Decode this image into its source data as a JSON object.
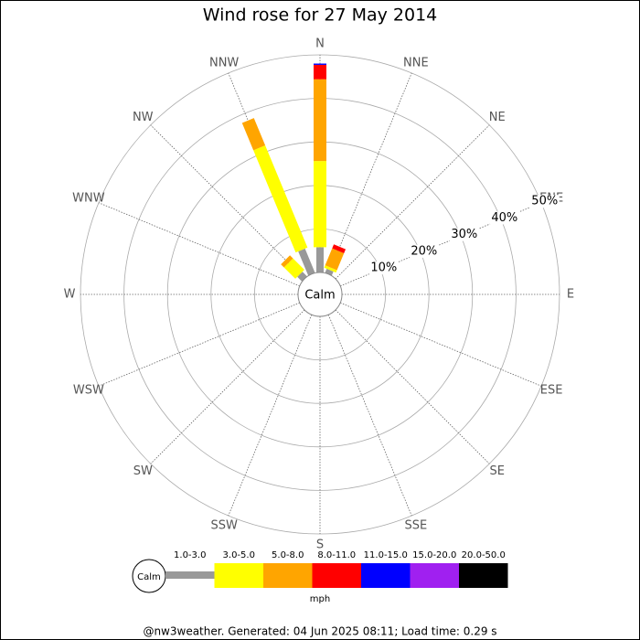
{
  "chart_data": {
    "type": "windrose",
    "title": "Wind rose for 27 May 2014",
    "calm_label": "Calm",
    "unit": "mph",
    "footer": "@nw3weather. Generated: 04 Jun 2025 08:11; Load time: 0.29 s",
    "categories": [
      "N",
      "NNE",
      "NE",
      "ENE",
      "E",
      "ESE",
      "SE",
      "SSE",
      "S",
      "SSW",
      "SW",
      "WSW",
      "W",
      "WNW",
      "NW",
      "NNW"
    ],
    "rlim": [
      0,
      50
    ],
    "rticks": [
      {
        "value": 10,
        "label": "10%"
      },
      {
        "value": 20,
        "label": "20%"
      },
      {
        "value": 30,
        "label": "30%"
      },
      {
        "value": 40,
        "label": "40%"
      },
      {
        "value": 50,
        "label": "50%"
      }
    ],
    "series": [
      {
        "name": "1.0-3.0",
        "color": "#999999",
        "values": [
          5.8,
          1.0,
          0,
          0,
          0,
          0,
          0,
          0,
          0,
          0,
          0,
          0,
          0,
          0,
          1.5,
          6.0
        ]
      },
      {
        "name": "3.0-5.0",
        "color": "#ffff00",
        "values": [
          19.8,
          0.6,
          0,
          0,
          0,
          0,
          0,
          0,
          0,
          0,
          0,
          0,
          0,
          0,
          3.7,
          25.4
        ]
      },
      {
        "name": "5.0-8.0",
        "color": "#ffa500",
        "values": [
          18.8,
          4.2,
          0,
          0,
          0,
          0,
          0,
          0,
          0,
          0,
          0,
          0,
          0,
          0,
          1.0,
          6.8
        ]
      },
      {
        "name": "8.0-11.0",
        "color": "#ff0000",
        "values": [
          3.3,
          1.0,
          0,
          0,
          0,
          0,
          0,
          0,
          0,
          0,
          0,
          0,
          0,
          0,
          0,
          0
        ]
      },
      {
        "name": "11.0-15.0",
        "color": "#0000ff",
        "values": [
          0.3,
          0,
          0,
          0,
          0,
          0,
          0,
          0,
          0,
          0,
          0,
          0,
          0,
          0,
          0,
          0
        ]
      },
      {
        "name": "15.0-20.0",
        "color": "#a020f0",
        "values": [
          0,
          0,
          0,
          0,
          0,
          0,
          0,
          0,
          0,
          0,
          0,
          0,
          0,
          0,
          0,
          0
        ]
      },
      {
        "name": "20.0-50.0",
        "color": "#000000",
        "values": [
          0,
          0,
          0,
          0,
          0,
          0,
          0,
          0,
          0,
          0,
          0,
          0,
          0,
          0,
          0,
          0
        ]
      }
    ]
  }
}
